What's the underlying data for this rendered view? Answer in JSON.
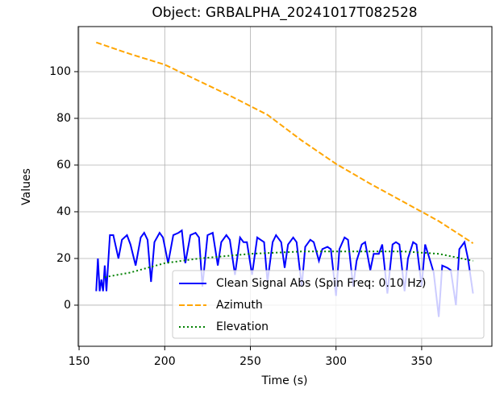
{
  "chart_data": {
    "type": "line",
    "title": "Object: GRBALPHA_20241017T082528",
    "xlabel": "Time (s)",
    "ylabel": "Values",
    "xlim": [
      149.5,
      391
    ],
    "ylim": [
      -17.6,
      119.3
    ],
    "xticks": [
      150,
      200,
      250,
      300,
      350
    ],
    "yticks": [
      0,
      20,
      40,
      60,
      80,
      100
    ],
    "grid": true,
    "legend": "lower right",
    "series": [
      {
        "name": "Clean Signal Abs (Spin Freq: 0.10 Hz)",
        "color": "#0000ff",
        "linestyle": "solid",
        "x": [
          160,
          161,
          162,
          163,
          164,
          165,
          166,
          168,
          170,
          173,
          175,
          178,
          180,
          183,
          186,
          188,
          190,
          192,
          194,
          197,
          199,
          202,
          205,
          208,
          210,
          212,
          215,
          218,
          220,
          222,
          225,
          228,
          231,
          233,
          236,
          238,
          241,
          244,
          246,
          248,
          251,
          254,
          256,
          258,
          260,
          263,
          265,
          268,
          270,
          272,
          275,
          277,
          280,
          282,
          285,
          287,
          290,
          292,
          295,
          297,
          300,
          302,
          305,
          307,
          310,
          312,
          315,
          317,
          320,
          322,
          325,
          327,
          330,
          333,
          335,
          337,
          340,
          342,
          345,
          347,
          350,
          352,
          355,
          357,
          360,
          362,
          365,
          367,
          370,
          372,
          375,
          377,
          380
        ],
        "values": [
          6,
          20,
          6,
          11,
          6,
          17,
          6,
          30,
          30,
          20,
          28,
          30,
          26,
          17,
          29,
          31,
          28,
          10,
          27,
          31,
          29,
          18,
          30,
          31,
          32,
          18,
          30,
          31,
          29,
          8,
          30,
          31,
          17,
          27,
          30,
          28,
          13,
          29,
          27,
          27,
          13,
          29,
          28,
          27,
          10,
          27,
          30,
          27,
          16,
          26,
          29,
          27,
          8,
          25,
          28,
          27,
          19,
          24,
          25,
          24,
          4,
          24,
          29,
          28,
          8,
          19,
          26,
          27,
          15,
          22,
          22,
          26,
          5,
          26,
          27,
          26,
          6,
          20,
          27,
          26,
          8,
          26,
          19,
          14,
          -5,
          17,
          16,
          15,
          0,
          24,
          27,
          20,
          5
        ]
      },
      {
        "name": "Azimuth",
        "color": "#ffa500",
        "linestyle": "dashed",
        "x": [
          160,
          180,
          200,
          220,
          240,
          260,
          280,
          300,
          320,
          340,
          360,
          380
        ],
        "values": [
          112.5,
          107.5,
          103,
          96,
          89,
          81.5,
          70.5,
          60.5,
          52,
          44,
          36,
          26.5
        ]
      },
      {
        "name": "Elevation",
        "color": "#008000",
        "linestyle": "dotted",
        "x": [
          165,
          180,
          200,
          220,
          250,
          280,
          310,
          340,
          360,
          380
        ],
        "values": [
          12,
          14,
          18,
          20,
          22,
          23,
          23,
          23,
          22,
          19
        ]
      }
    ]
  }
}
